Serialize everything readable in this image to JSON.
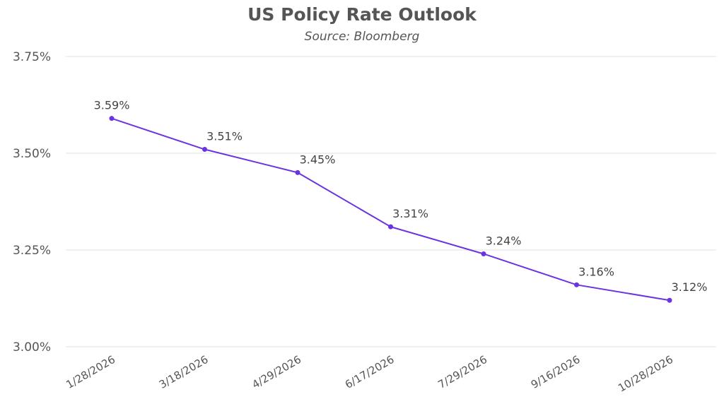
{
  "chart_data": {
    "type": "line",
    "title": "US Policy Rate Outlook",
    "subtitle": "Source: Bloomberg",
    "xlabel": "",
    "ylabel": "",
    "categories": [
      "1/28/2026",
      "3/18/2026",
      "4/29/2026",
      "6/17/2026",
      "7/29/2026",
      "9/16/2026",
      "10/28/2026"
    ],
    "series": [
      {
        "name": "US Policy Rate",
        "values": [
          3.59,
          3.51,
          3.45,
          3.31,
          3.24,
          3.16,
          3.12
        ],
        "labels": [
          "3.59%",
          "3.51%",
          "3.45%",
          "3.31%",
          "3.24%",
          "3.16%",
          "3.12%"
        ],
        "color": "#6a35e0"
      }
    ],
    "ylim": [
      3.0,
      3.75
    ],
    "yticks": [
      3.0,
      3.25,
      3.5,
      3.75
    ],
    "ytick_labels": [
      "3.00%",
      "3.25%",
      "3.50%",
      "3.75%"
    ],
    "grid": true,
    "legend": "none",
    "grid_color": "#e6e6e6"
  }
}
